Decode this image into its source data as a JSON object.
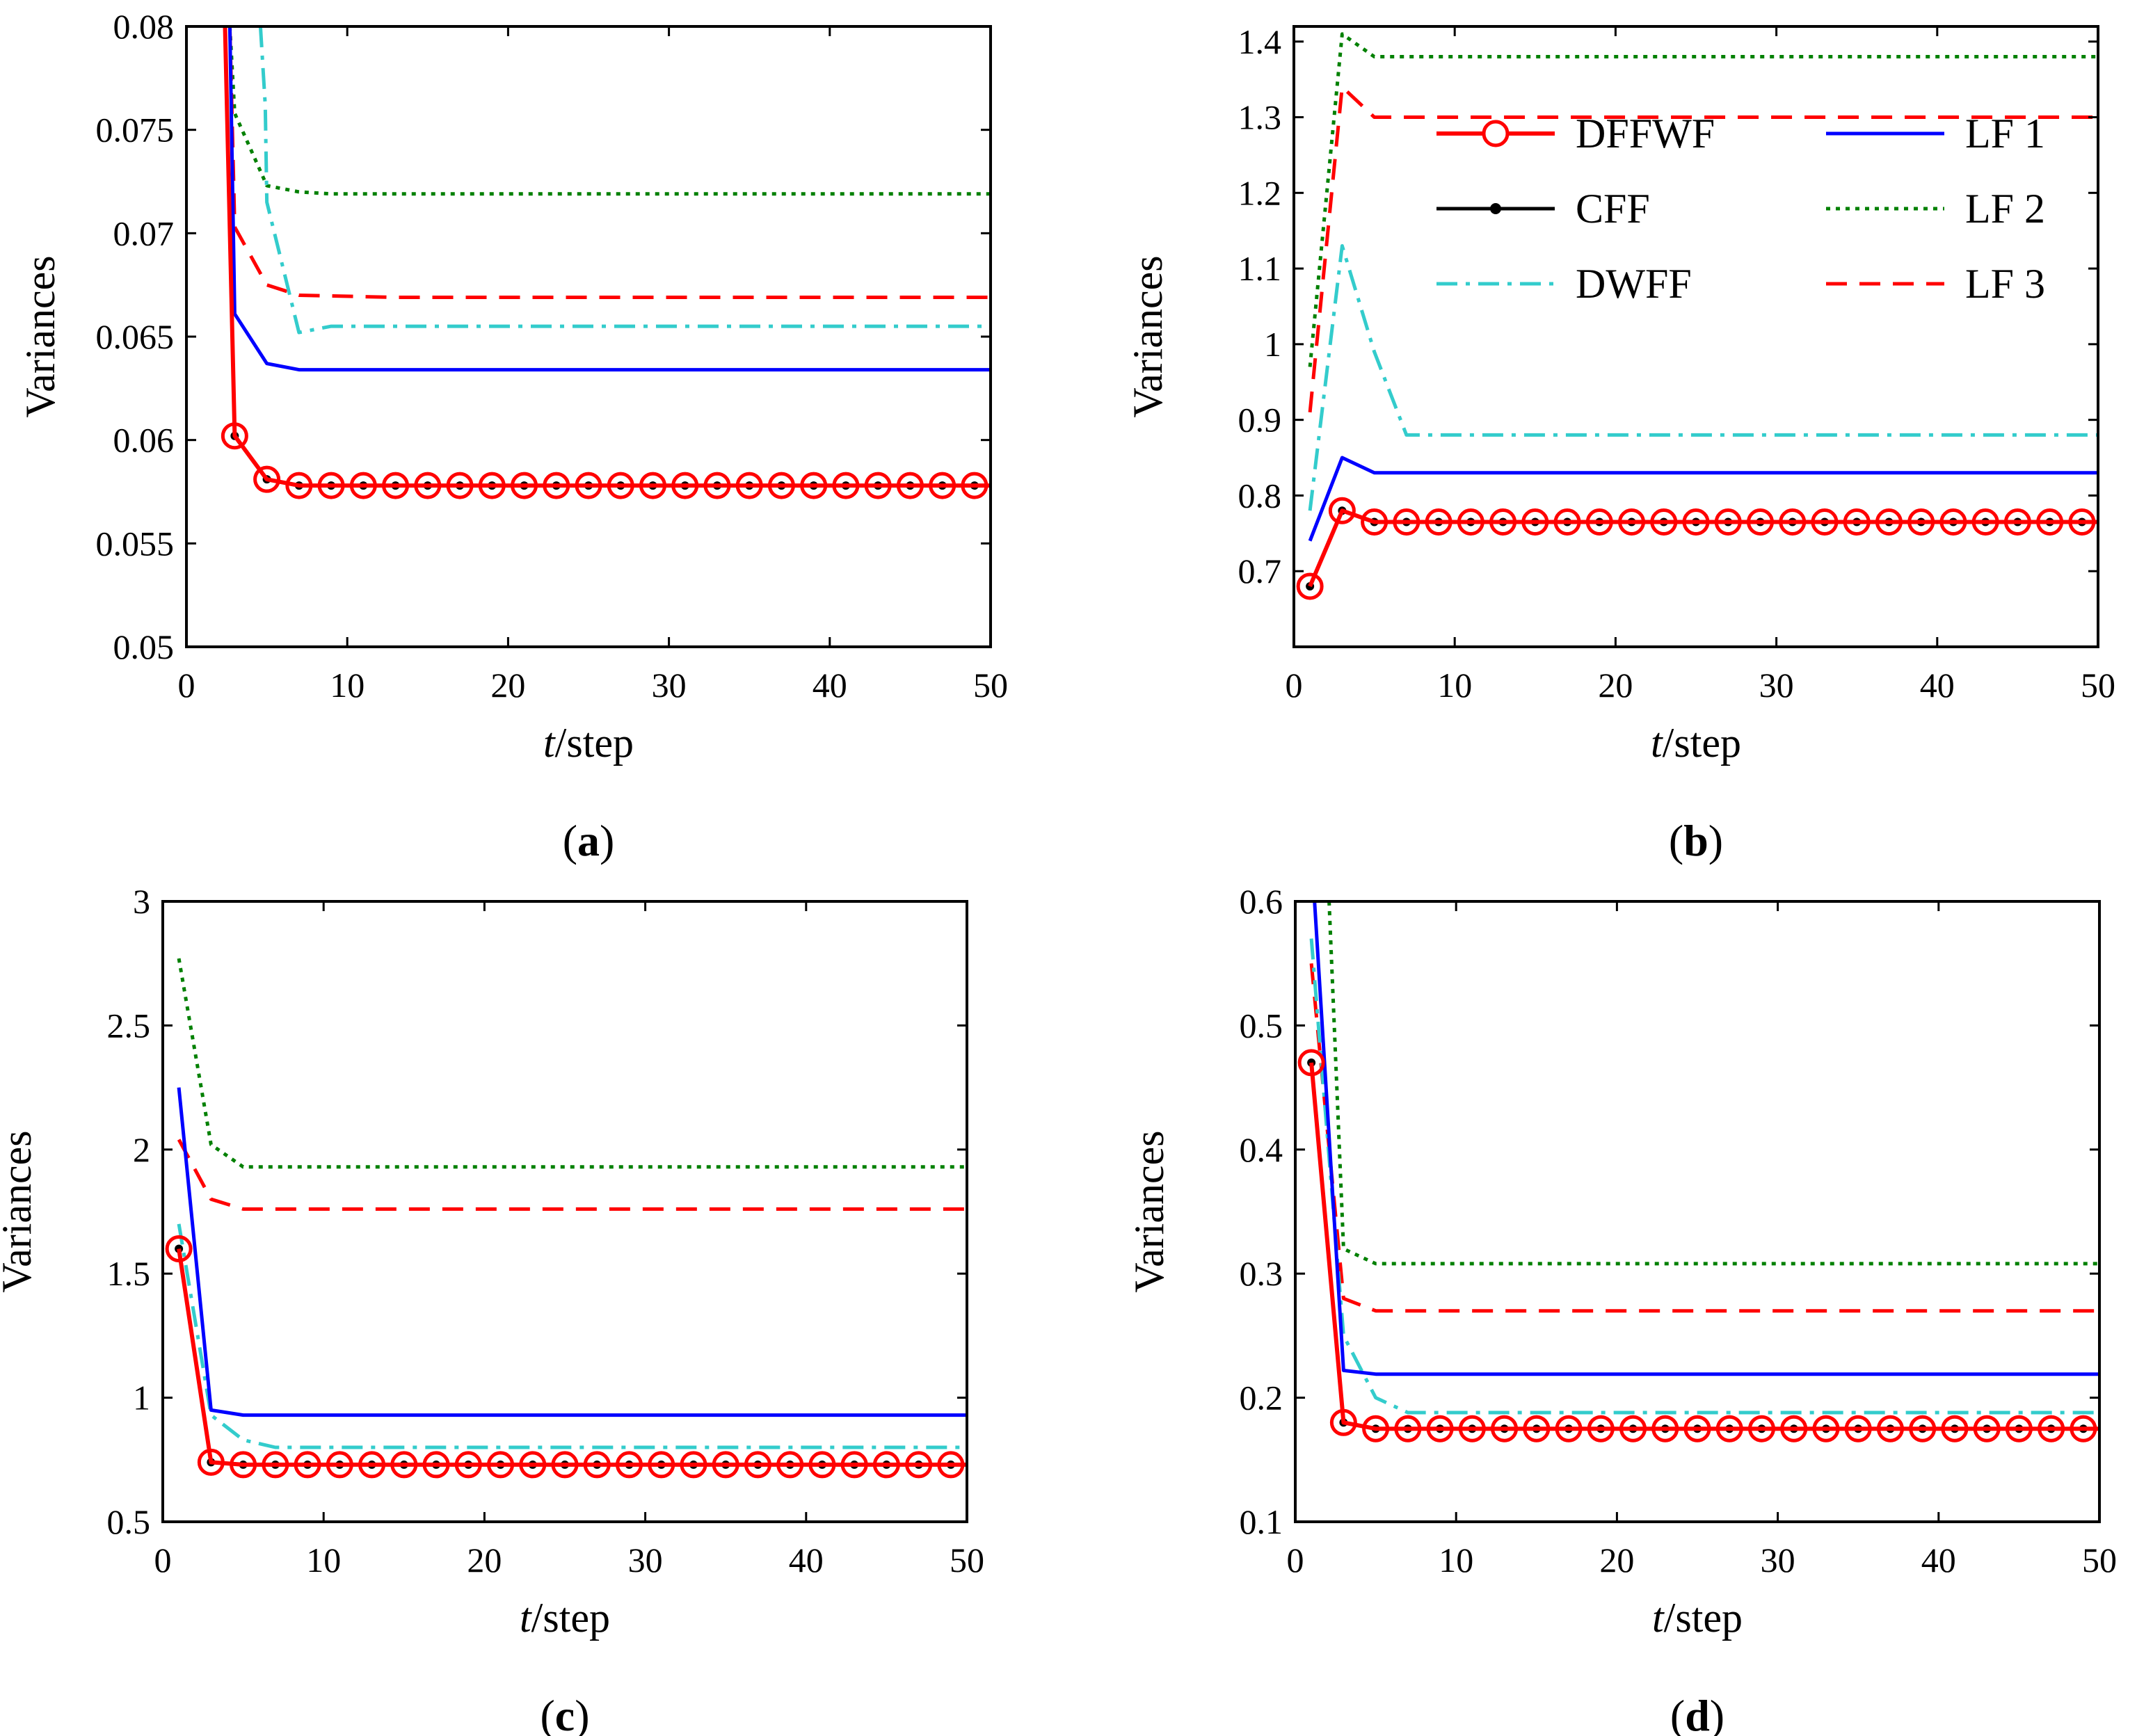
{
  "figure": {
    "series_styles": [
      {
        "name": "DFFWF",
        "color": "#ff0000",
        "dash": "",
        "marker": "circle-dot"
      },
      {
        "name": "CFF",
        "color": "#000000",
        "dash": "",
        "marker": "dot"
      },
      {
        "name": "DWFF",
        "color": "#33cccc",
        "dash": "dashdot",
        "marker": ""
      },
      {
        "name": "LF 1",
        "color": "#0000ff",
        "dash": "",
        "marker": ""
      },
      {
        "name": "LF 2",
        "color": "#008000",
        "dash": "dot",
        "marker": ""
      },
      {
        "name": "LF 3",
        "color": "#ff0000",
        "dash": "dash",
        "marker": ""
      }
    ]
  },
  "chart_data": [
    {
      "panel_label": "a",
      "type": "line",
      "title": "",
      "xlabel_italic": "t",
      "xlabel_rest": "/step",
      "ylabel": "Variances",
      "xlim": [
        0,
        50
      ],
      "ylim": [
        0.05,
        0.08
      ],
      "xticks": [
        0,
        10,
        20,
        30,
        40,
        50
      ],
      "xtick_labels": [
        "0",
        "10",
        "20",
        "30",
        "40",
        "50"
      ],
      "yticks": [
        0.05,
        0.055,
        0.06,
        0.065,
        0.07,
        0.075,
        0.08
      ],
      "ytick_labels": [
        "0.05",
        "0.055",
        "0.06",
        "0.065",
        "0.07",
        "0.075",
        "0.08"
      ],
      "grid": false,
      "legend": false,
      "series": [
        {
          "name": "LF 2",
          "x": [
            2.7,
            3,
            5,
            7,
            9,
            50
          ],
          "y": [
            0.08,
            0.0758,
            0.0723,
            0.072,
            0.0719,
            0.0719
          ]
        },
        {
          "name": "LF 3",
          "x": [
            2.7,
            3,
            5,
            7,
            13,
            50
          ],
          "y": [
            0.08,
            0.0703,
            0.0675,
            0.067,
            0.0669,
            0.0669
          ]
        },
        {
          "name": "DWFF",
          "x": [
            4.6,
            4.9,
            5,
            7,
            9,
            50
          ],
          "y": [
            0.08,
            0.0762,
            0.0715,
            0.0652,
            0.0655,
            0.0655
          ]
        },
        {
          "name": "LF 1",
          "x": [
            2.7,
            3,
            5,
            7,
            50
          ],
          "y": [
            0.08,
            0.0661,
            0.0637,
            0.0634,
            0.0634
          ]
        },
        {
          "name": "CFF",
          "x": [
            2.4,
            3,
            5,
            7,
            9,
            11,
            13,
            15,
            17,
            19,
            21,
            23,
            25,
            27,
            29,
            31,
            33,
            35,
            37,
            39,
            41,
            43,
            45,
            47,
            49
          ],
          "y": [
            0.08,
            0.0602,
            0.0581,
            0.0578,
            0.0578,
            0.0578,
            0.0578,
            0.0578,
            0.0578,
            0.0578,
            0.0578,
            0.0578,
            0.0578,
            0.0578,
            0.0578,
            0.0578,
            0.0578,
            0.0578,
            0.0578,
            0.0578,
            0.0578,
            0.0578,
            0.0578,
            0.0578,
            0.0578
          ]
        },
        {
          "name": "DFFWF",
          "x": [
            2.4,
            3,
            5,
            7,
            9,
            11,
            13,
            15,
            17,
            19,
            21,
            23,
            25,
            27,
            29,
            31,
            33,
            35,
            37,
            39,
            41,
            43,
            45,
            47,
            49,
            50
          ],
          "y": [
            0.08,
            0.0602,
            0.0581,
            0.0578,
            0.0578,
            0.0578,
            0.0578,
            0.0578,
            0.0578,
            0.0578,
            0.0578,
            0.0578,
            0.0578,
            0.0578,
            0.0578,
            0.0578,
            0.0578,
            0.0578,
            0.0578,
            0.0578,
            0.0578,
            0.0578,
            0.0578,
            0.0578,
            0.0578,
            0.0578
          ]
        }
      ]
    },
    {
      "panel_label": "b",
      "type": "line",
      "title": "",
      "xlabel_italic": "t",
      "xlabel_rest": "/step",
      "ylabel": "Variances",
      "xlim": [
        0,
        50
      ],
      "ylim": [
        0.6,
        1.42
      ],
      "xticks": [
        0,
        10,
        20,
        30,
        40,
        50
      ],
      "xtick_labels": [
        "0",
        "10",
        "20",
        "30",
        "40",
        "50"
      ],
      "yticks": [
        0.7,
        0.8,
        0.9,
        1.0,
        1.1,
        1.2,
        1.3,
        1.4
      ],
      "ytick_labels": [
        "0.7",
        "0.8",
        "0.9",
        "1",
        "1.1",
        "1.2",
        "1.3",
        "1.4"
      ],
      "grid": false,
      "legend": true,
      "legend_position": "top-right",
      "legend_layout": [
        [
          "DFFWF",
          "LF 1"
        ],
        [
          "CFF",
          "LF 2"
        ],
        [
          "DWFF",
          "LF 3"
        ]
      ],
      "series": [
        {
          "name": "LF 2",
          "x": [
            1,
            3,
            5,
            50
          ],
          "y": [
            0.97,
            1.41,
            1.38,
            1.38
          ]
        },
        {
          "name": "LF 3",
          "x": [
            1,
            3,
            5,
            50
          ],
          "y": [
            0.91,
            1.34,
            1.3,
            1.3
          ]
        },
        {
          "name": "DWFF",
          "x": [
            1,
            3,
            5,
            7,
            50
          ],
          "y": [
            0.78,
            1.13,
            0.99,
            0.88,
            0.88
          ]
        },
        {
          "name": "LF 1",
          "x": [
            1,
            3,
            5,
            50
          ],
          "y": [
            0.74,
            0.85,
            0.83,
            0.83
          ]
        },
        {
          "name": "CFF",
          "x": [
            1,
            3,
            5,
            7,
            9,
            11,
            13,
            15,
            17,
            19,
            21,
            23,
            25,
            27,
            29,
            31,
            33,
            35,
            37,
            39,
            41,
            43,
            45,
            47,
            49
          ],
          "y": [
            0.68,
            0.78,
            0.765,
            0.765,
            0.765,
            0.765,
            0.765,
            0.765,
            0.765,
            0.765,
            0.765,
            0.765,
            0.765,
            0.765,
            0.765,
            0.765,
            0.765,
            0.765,
            0.765,
            0.765,
            0.765,
            0.765,
            0.765,
            0.765,
            0.765
          ]
        },
        {
          "name": "DFFWF",
          "x": [
            1,
            3,
            5,
            7,
            9,
            11,
            13,
            15,
            17,
            19,
            21,
            23,
            25,
            27,
            29,
            31,
            33,
            35,
            37,
            39,
            41,
            43,
            45,
            47,
            49,
            50
          ],
          "y": [
            0.68,
            0.78,
            0.765,
            0.765,
            0.765,
            0.765,
            0.765,
            0.765,
            0.765,
            0.765,
            0.765,
            0.765,
            0.765,
            0.765,
            0.765,
            0.765,
            0.765,
            0.765,
            0.765,
            0.765,
            0.765,
            0.765,
            0.765,
            0.765,
            0.765,
            0.765
          ]
        }
      ]
    },
    {
      "panel_label": "c",
      "type": "line",
      "title": "",
      "xlabel_italic": "t",
      "xlabel_rest": "/step",
      "ylabel": "Variances",
      "xlim": [
        0,
        50
      ],
      "ylim": [
        0.5,
        3.0
      ],
      "xticks": [
        0,
        10,
        20,
        30,
        40,
        50
      ],
      "xtick_labels": [
        "0",
        "10",
        "20",
        "30",
        "40",
        "50"
      ],
      "yticks": [
        0.5,
        1.0,
        1.5,
        2.0,
        2.5,
        3.0
      ],
      "ytick_labels": [
        "0.5",
        "1",
        "1.5",
        "2",
        "2.5",
        "3"
      ],
      "grid": false,
      "legend": false,
      "series": [
        {
          "name": "LF 2",
          "x": [
            1,
            3,
            5,
            50
          ],
          "y": [
            2.77,
            2.02,
            1.93,
            1.93
          ]
        },
        {
          "name": "LF 3",
          "x": [
            1,
            3,
            5,
            50
          ],
          "y": [
            2.04,
            1.8,
            1.76,
            1.76
          ]
        },
        {
          "name": "DWFF",
          "x": [
            1,
            3,
            5,
            7,
            50
          ],
          "y": [
            1.7,
            0.93,
            0.83,
            0.8,
            0.8
          ]
        },
        {
          "name": "LF 1",
          "x": [
            1,
            3,
            5,
            50
          ],
          "y": [
            2.25,
            0.95,
            0.93,
            0.93
          ]
        },
        {
          "name": "CFF",
          "x": [
            1,
            3,
            5,
            7,
            9,
            11,
            13,
            15,
            17,
            19,
            21,
            23,
            25,
            27,
            29,
            31,
            33,
            35,
            37,
            39,
            41,
            43,
            45,
            47,
            49
          ],
          "y": [
            1.6,
            0.74,
            0.73,
            0.73,
            0.73,
            0.73,
            0.73,
            0.73,
            0.73,
            0.73,
            0.73,
            0.73,
            0.73,
            0.73,
            0.73,
            0.73,
            0.73,
            0.73,
            0.73,
            0.73,
            0.73,
            0.73,
            0.73,
            0.73,
            0.73
          ]
        },
        {
          "name": "DFFWF",
          "x": [
            1,
            3,
            5,
            7,
            9,
            11,
            13,
            15,
            17,
            19,
            21,
            23,
            25,
            27,
            29,
            31,
            33,
            35,
            37,
            39,
            41,
            43,
            45,
            47,
            49,
            50
          ],
          "y": [
            1.6,
            0.74,
            0.73,
            0.73,
            0.73,
            0.73,
            0.73,
            0.73,
            0.73,
            0.73,
            0.73,
            0.73,
            0.73,
            0.73,
            0.73,
            0.73,
            0.73,
            0.73,
            0.73,
            0.73,
            0.73,
            0.73,
            0.73,
            0.73,
            0.73,
            0.73
          ]
        }
      ]
    },
    {
      "panel_label": "d",
      "type": "line",
      "title": "",
      "xlabel_italic": "t",
      "xlabel_rest": "/step",
      "ylabel": "Variances",
      "xlim": [
        0,
        50
      ],
      "ylim": [
        0.1,
        0.6
      ],
      "xticks": [
        0,
        10,
        20,
        30,
        40,
        50
      ],
      "xtick_labels": [
        "0",
        "10",
        "20",
        "30",
        "40",
        "50"
      ],
      "yticks": [
        0.1,
        0.2,
        0.3,
        0.4,
        0.5,
        0.6
      ],
      "ytick_labels": [
        "0.1",
        "0.2",
        "0.3",
        "0.4",
        "0.5",
        "0.6"
      ],
      "grid": false,
      "legend": false,
      "series": [
        {
          "name": "LF 2",
          "x": [
            2.1,
            3,
            5,
            50
          ],
          "y": [
            0.6,
            0.32,
            0.308,
            0.308
          ]
        },
        {
          "name": "LF 3",
          "x": [
            1,
            3,
            5,
            50
          ],
          "y": [
            0.55,
            0.28,
            0.27,
            0.27
          ]
        },
        {
          "name": "DWFF",
          "x": [
            1,
            3,
            5,
            7,
            50
          ],
          "y": [
            0.57,
            0.25,
            0.2,
            0.188,
            0.188
          ]
        },
        {
          "name": "LF 1",
          "x": [
            1.2,
            3,
            5,
            50
          ],
          "y": [
            0.6,
            0.222,
            0.219,
            0.219
          ]
        },
        {
          "name": "CFF",
          "x": [
            1,
            3,
            5,
            7,
            9,
            11,
            13,
            15,
            17,
            19,
            21,
            23,
            25,
            27,
            29,
            31,
            33,
            35,
            37,
            39,
            41,
            43,
            45,
            47,
            49
          ],
          "y": [
            0.47,
            0.18,
            0.175,
            0.175,
            0.175,
            0.175,
            0.175,
            0.175,
            0.175,
            0.175,
            0.175,
            0.175,
            0.175,
            0.175,
            0.175,
            0.175,
            0.175,
            0.175,
            0.175,
            0.175,
            0.175,
            0.175,
            0.175,
            0.175,
            0.175
          ]
        },
        {
          "name": "DFFWF",
          "x": [
            1,
            3,
            5,
            7,
            9,
            11,
            13,
            15,
            17,
            19,
            21,
            23,
            25,
            27,
            29,
            31,
            33,
            35,
            37,
            39,
            41,
            43,
            45,
            47,
            49,
            50
          ],
          "y": [
            0.47,
            0.18,
            0.175,
            0.175,
            0.175,
            0.175,
            0.175,
            0.175,
            0.175,
            0.175,
            0.175,
            0.175,
            0.175,
            0.175,
            0.175,
            0.175,
            0.175,
            0.175,
            0.175,
            0.175,
            0.175,
            0.175,
            0.175,
            0.175,
            0.175,
            0.175
          ]
        }
      ]
    }
  ]
}
